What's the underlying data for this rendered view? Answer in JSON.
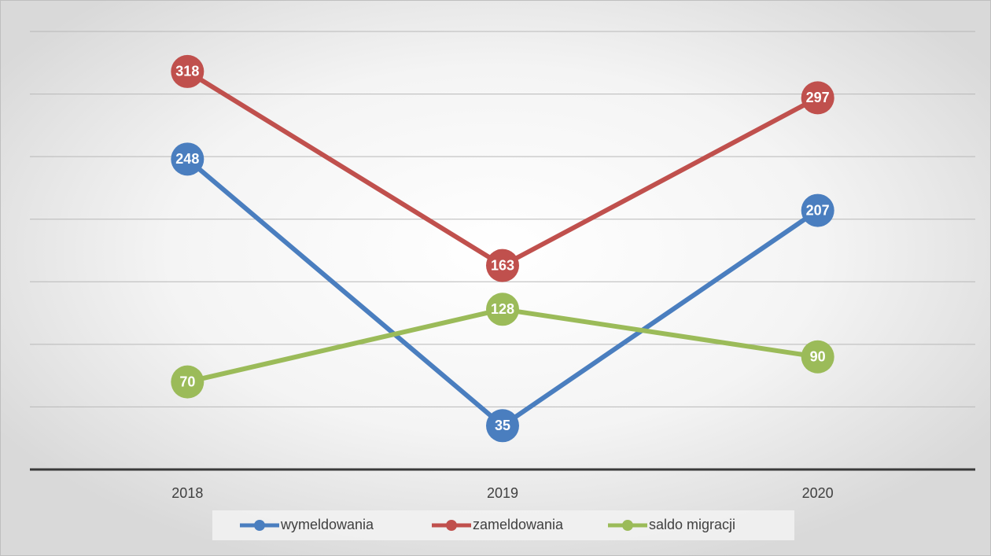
{
  "chart_data": {
    "type": "line",
    "categories": [
      "2018",
      "2019",
      "2020"
    ],
    "series": [
      {
        "name": "wymeldowania",
        "color": "#4a7ebf",
        "values": [
          248,
          35,
          207
        ]
      },
      {
        "name": "zameldowania",
        "color": "#c0504d",
        "values": [
          318,
          163,
          297
        ]
      },
      {
        "name": "saldo migracji",
        "color": "#9bbb59",
        "values": [
          70,
          128,
          90
        ]
      }
    ],
    "ylim": [
      0,
      350
    ],
    "yticks": [
      0,
      50,
      100,
      150,
      200,
      250,
      300,
      350
    ],
    "grid": true,
    "legend": "bottom"
  }
}
